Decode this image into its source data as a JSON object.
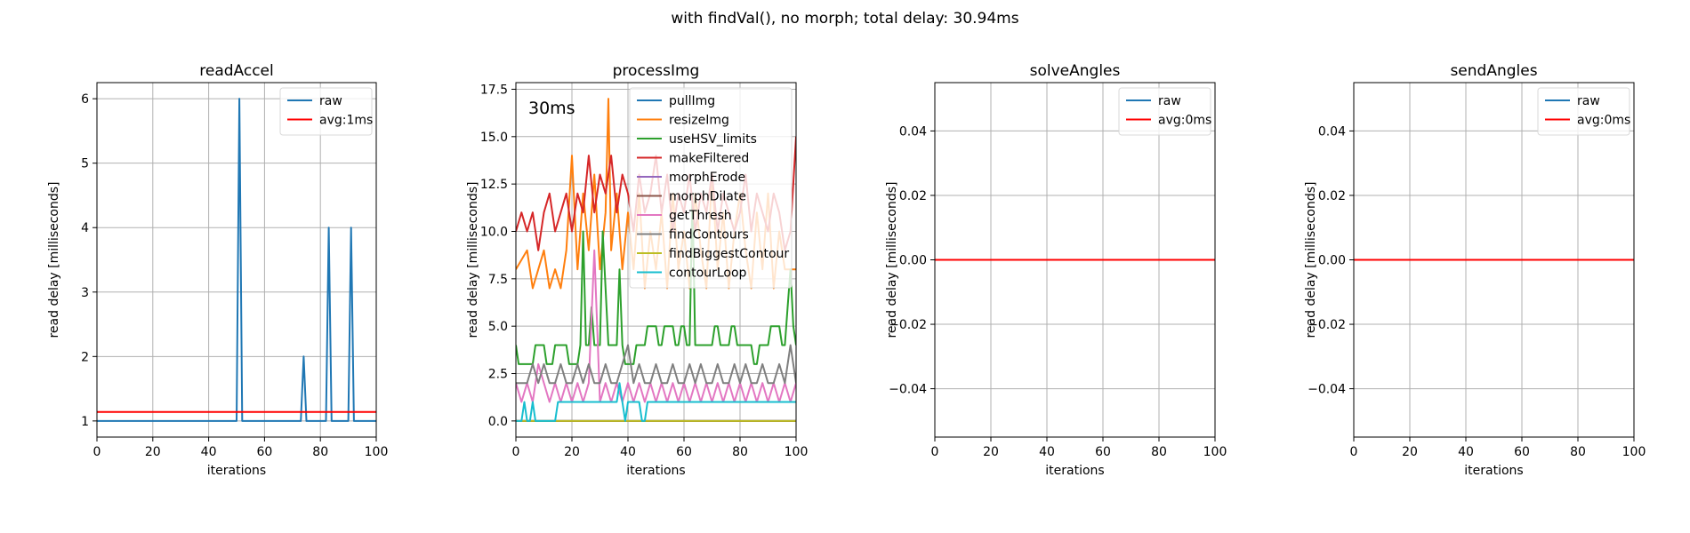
{
  "figure": {
    "suptitle": "with findVal(), no morph; total delay: 30.94ms"
  },
  "chart_data": [
    {
      "type": "line",
      "title": "readAccel",
      "xlabel": "iterations",
      "ylabel": "read delay [milliseconds]",
      "xlim": [
        0,
        100
      ],
      "ylim": [
        0.75,
        6.25
      ],
      "xticks": [
        0,
        20,
        40,
        60,
        80,
        100
      ],
      "yticks": [
        1,
        2,
        3,
        4,
        5,
        6
      ],
      "ytick_labels": [
        "1",
        "2",
        "3",
        "4",
        "5",
        "6"
      ],
      "grid": true,
      "legend_position": "upper-right",
      "series": [
        {
          "name": "raw",
          "color": "#1f77b4",
          "x": [
            0,
            50,
            51,
            52,
            73,
            74,
            75,
            82,
            83,
            84,
            90,
            91,
            92,
            100
          ],
          "y": [
            1,
            1,
            6,
            1,
            1,
            2,
            1,
            1,
            4,
            1,
            1,
            4,
            1,
            1
          ]
        },
        {
          "name": "avg:1ms",
          "color": "#ff0000",
          "x": [
            0,
            100
          ],
          "y": [
            1.14,
            1.14
          ]
        }
      ]
    },
    {
      "type": "line",
      "title": "processImg",
      "xlabel": "iterations",
      "ylabel": "read delay [milliseconds]",
      "xlim": [
        0,
        100
      ],
      "ylim": [
        -0.85,
        17.85
      ],
      "xticks": [
        0,
        20,
        40,
        60,
        80,
        100
      ],
      "yticks": [
        0,
        2.5,
        5,
        7.5,
        10,
        12.5,
        15,
        17.5
      ],
      "ytick_labels": [
        "0.0",
        "2.5",
        "5.0",
        "7.5",
        "10.0",
        "12.5",
        "15.0",
        "17.5"
      ],
      "grid": true,
      "legend_position": "upper-right",
      "annotation": "30ms",
      "series": [
        {
          "name": "pullImg",
          "color": "#1f77b4",
          "x": [
            0,
            100
          ],
          "y": [
            0,
            0
          ]
        },
        {
          "name": "resizeImg",
          "color": "#ff7f0e",
          "x": [
            0,
            4,
            6,
            8,
            10,
            12,
            14,
            16,
            18,
            20,
            22,
            24,
            26,
            28,
            30,
            32,
            33,
            34,
            36,
            38,
            40,
            42,
            44,
            46,
            48,
            50,
            52,
            54,
            56,
            58,
            60,
            62,
            64,
            66,
            68,
            70,
            72,
            74,
            76,
            78,
            80,
            82,
            84,
            86,
            88,
            90,
            92,
            94,
            96,
            98,
            100
          ],
          "y": [
            8,
            9,
            7,
            8,
            9,
            7,
            8,
            7,
            9,
            14,
            8,
            12,
            9,
            13,
            8,
            11,
            17,
            9,
            12,
            8,
            11,
            8,
            12,
            7,
            10,
            8,
            11,
            7,
            12,
            8,
            10,
            7,
            12,
            9,
            7,
            13,
            8,
            11,
            7,
            10,
            12,
            9,
            7,
            11,
            8,
            12,
            7,
            10,
            8,
            8,
            8
          ]
        },
        {
          "name": "useHSV_limits",
          "color": "#2ca02c",
          "x": [
            0,
            1,
            6,
            7,
            10,
            11,
            13,
            14,
            18,
            19,
            22,
            23,
            24,
            25,
            26,
            27,
            28,
            29,
            30,
            31,
            33,
            34,
            36,
            37,
            38,
            39,
            42,
            43,
            46,
            47,
            50,
            51,
            52,
            53,
            56,
            57,
            58,
            59,
            60,
            61,
            62,
            63,
            64,
            65,
            70,
            71,
            72,
            73,
            76,
            77,
            78,
            79,
            84,
            85,
            86,
            87,
            90,
            91,
            94,
            95,
            96,
            97,
            98,
            99,
            100
          ],
          "y": [
            4,
            3,
            3,
            4,
            4,
            3,
            3,
            4,
            4,
            3,
            3,
            4,
            10,
            4,
            4,
            6,
            4,
            4,
            4,
            10,
            4,
            4,
            4,
            8,
            4,
            3,
            3,
            4,
            4,
            5,
            5,
            4,
            4,
            5,
            5,
            4,
            4,
            5,
            5,
            4,
            4,
            12,
            4,
            4,
            4,
            5,
            5,
            4,
            4,
            5,
            5,
            4,
            4,
            3,
            3,
            4,
            4,
            5,
            5,
            4,
            4,
            6,
            8,
            5,
            4
          ]
        },
        {
          "name": "makeFiltered",
          "color": "#d62728",
          "x": [
            0,
            2,
            4,
            6,
            8,
            10,
            12,
            14,
            16,
            18,
            20,
            22,
            24,
            26,
            28,
            30,
            32,
            34,
            36,
            38,
            40,
            42,
            44,
            46,
            48,
            50,
            52,
            54,
            56,
            58,
            60,
            62,
            64,
            66,
            68,
            70,
            72,
            74,
            76,
            78,
            80,
            82,
            84,
            86,
            88,
            90,
            92,
            94,
            96,
            98,
            100
          ],
          "y": [
            10,
            11,
            10,
            11,
            9,
            11,
            12,
            10,
            11,
            12,
            10,
            12,
            11,
            14,
            11,
            13,
            12,
            14,
            11,
            13,
            12,
            10,
            13,
            11,
            12,
            14,
            11,
            13,
            10,
            12,
            11,
            13,
            10,
            12,
            11,
            13,
            10,
            12,
            11,
            10,
            11,
            13,
            10,
            12,
            11,
            10,
            12,
            11,
            9,
            10,
            15
          ]
        },
        {
          "name": "morphErode",
          "color": "#9467bd",
          "x": [
            0,
            100
          ],
          "y": [
            0,
            0
          ]
        },
        {
          "name": "morphDilate",
          "color": "#8c564b",
          "x": [
            0,
            100
          ],
          "y": [
            0,
            0
          ]
        },
        {
          "name": "getThresh",
          "color": "#e377c2",
          "x": [
            0,
            2,
            4,
            6,
            8,
            10,
            12,
            14,
            16,
            18,
            20,
            22,
            24,
            26,
            28,
            30,
            32,
            34,
            36,
            38,
            40,
            42,
            44,
            46,
            48,
            50,
            52,
            54,
            56,
            58,
            60,
            62,
            64,
            66,
            68,
            70,
            72,
            74,
            76,
            78,
            80,
            82,
            84,
            86,
            88,
            90,
            92,
            94,
            96,
            98,
            100
          ],
          "y": [
            2,
            1,
            2,
            1,
            3,
            2,
            1,
            2,
            1,
            2,
            1,
            2,
            1,
            2,
            9,
            1,
            2,
            1,
            2,
            1,
            2,
            1,
            2,
            1,
            2,
            1,
            2,
            1,
            2,
            1,
            2,
            1,
            2,
            1,
            2,
            1,
            2,
            1,
            2,
            1,
            2,
            1,
            2,
            1,
            2,
            1,
            2,
            1,
            2,
            1,
            2
          ]
        },
        {
          "name": "findContours",
          "color": "#7f7f7f",
          "x": [
            0,
            4,
            6,
            8,
            10,
            12,
            14,
            16,
            18,
            20,
            22,
            24,
            26,
            28,
            30,
            32,
            34,
            36,
            38,
            40,
            42,
            44,
            46,
            48,
            50,
            52,
            54,
            56,
            58,
            60,
            62,
            64,
            66,
            68,
            70,
            72,
            74,
            76,
            78,
            80,
            82,
            84,
            86,
            88,
            90,
            92,
            94,
            96,
            98,
            100
          ],
          "y": [
            2,
            2,
            3,
            2,
            3,
            2,
            2,
            3,
            2,
            2,
            3,
            2,
            3,
            2,
            2,
            3,
            2,
            2,
            3,
            4,
            2,
            3,
            2,
            2,
            3,
            2,
            2,
            3,
            2,
            2,
            3,
            2,
            3,
            2,
            2,
            3,
            2,
            2,
            3,
            2,
            3,
            2,
            2,
            3,
            2,
            2,
            3,
            2,
            4,
            2
          ]
        },
        {
          "name": "findBiggestContour",
          "color": "#bcbd22",
          "x": [
            0,
            100
          ],
          "y": [
            0,
            0
          ]
        },
        {
          "name": "contourLoop",
          "color": "#17becf",
          "x": [
            0,
            2,
            3,
            4,
            5,
            6,
            7,
            8,
            9,
            10,
            11,
            12,
            13,
            14,
            15,
            36,
            37,
            38,
            39,
            40,
            44,
            45,
            46,
            47,
            100
          ],
          "y": [
            0,
            0,
            1,
            0,
            0,
            1,
            0,
            0,
            0,
            0,
            0,
            0,
            0,
            0,
            1,
            1,
            2,
            1,
            0,
            1,
            1,
            0,
            0,
            1,
            1
          ]
        }
      ]
    },
    {
      "type": "line",
      "title": "solveAngles",
      "xlabel": "iterations",
      "ylabel": "read delay [milliseconds]",
      "xlim": [
        0,
        100
      ],
      "ylim": [
        -0.055,
        0.055
      ],
      "xticks": [
        0,
        20,
        40,
        60,
        80,
        100
      ],
      "yticks": [
        -0.04,
        -0.02,
        0,
        0.02,
        0.04
      ],
      "ytick_labels": [
        "−0.04",
        "−0.02",
        "0.00",
        "0.02",
        "0.04"
      ],
      "grid": true,
      "legend_position": "upper-right",
      "series": [
        {
          "name": "raw",
          "color": "#1f77b4",
          "x": [
            0,
            100
          ],
          "y": [
            0,
            0
          ]
        },
        {
          "name": "avg:0ms",
          "color": "#ff0000",
          "x": [
            0,
            100
          ],
          "y": [
            0,
            0
          ]
        }
      ]
    },
    {
      "type": "line",
      "title": "sendAngles",
      "xlabel": "iterations",
      "ylabel": "read delay [milliseconds]",
      "xlim": [
        0,
        100
      ],
      "ylim": [
        -0.055,
        0.055
      ],
      "xticks": [
        0,
        20,
        40,
        60,
        80,
        100
      ],
      "yticks": [
        -0.04,
        -0.02,
        0,
        0.02,
        0.04
      ],
      "ytick_labels": [
        "−0.04",
        "−0.02",
        "0.00",
        "0.02",
        "0.04"
      ],
      "grid": true,
      "legend_position": "upper-right",
      "series": [
        {
          "name": "raw",
          "color": "#1f77b4",
          "x": [
            0,
            100
          ],
          "y": [
            0,
            0
          ]
        },
        {
          "name": "avg:0ms",
          "color": "#ff0000",
          "x": [
            0,
            100
          ],
          "y": [
            0,
            0
          ]
        }
      ]
    }
  ]
}
